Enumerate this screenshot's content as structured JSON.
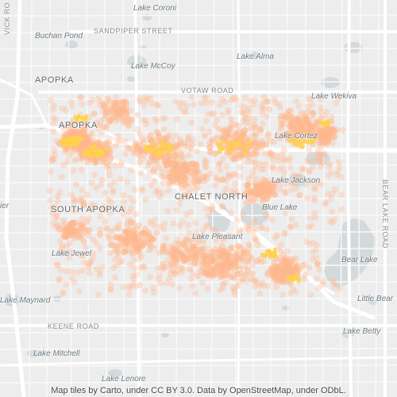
{
  "map": {
    "labels": {
      "lake_coroni": "Lake Coroni",
      "buchan_pond": "Buchan Pond",
      "sandpiper_street": "SANDPIPER STREET",
      "lake_alma": "Lake Alma",
      "lake_mccoy": "Lake McCoy",
      "apopka_top": "APOPKA",
      "votaw_road": "VOTAW ROAD",
      "lake_wekiva": "Lake Wekiva",
      "apopka": "APOPKA",
      "lake_cortez": "Lake Cortez",
      "lake_jackson": "Lake Jackson",
      "chalet_north": "CHALET NORTH",
      "south_apopka": "SOUTH APOPKA",
      "blue_lake": "Blue Lake",
      "lake_pleasant": "Lake Pleasant",
      "lake_jewel": "Lake Jewel",
      "bear_lake": "Bear Lake",
      "lake_maynard": "Lake Maynard",
      "little_bear": "Little Bear",
      "keene_road": "KEENE ROAD",
      "lake_betty": "Lake Betty",
      "lake_mitchell": "Lake Mitchell",
      "lake_lenore": "Lake Lenore",
      "vick_road": "VICK RO",
      "bear_lake_road": "BEAR LAKE ROAD",
      "edge_left": "ier"
    },
    "attribution": "Map tiles by Carto, under CC BY 3.0. Data by OpenStreetMap, under ODbL.",
    "colors": {
      "land": "#ededed",
      "water": "#d4dadc",
      "road_major": "#ffffff",
      "road_minor": "#f7f7f7",
      "point_outer": "#ffb98f",
      "point_core": "#ffd24a"
    }
  }
}
